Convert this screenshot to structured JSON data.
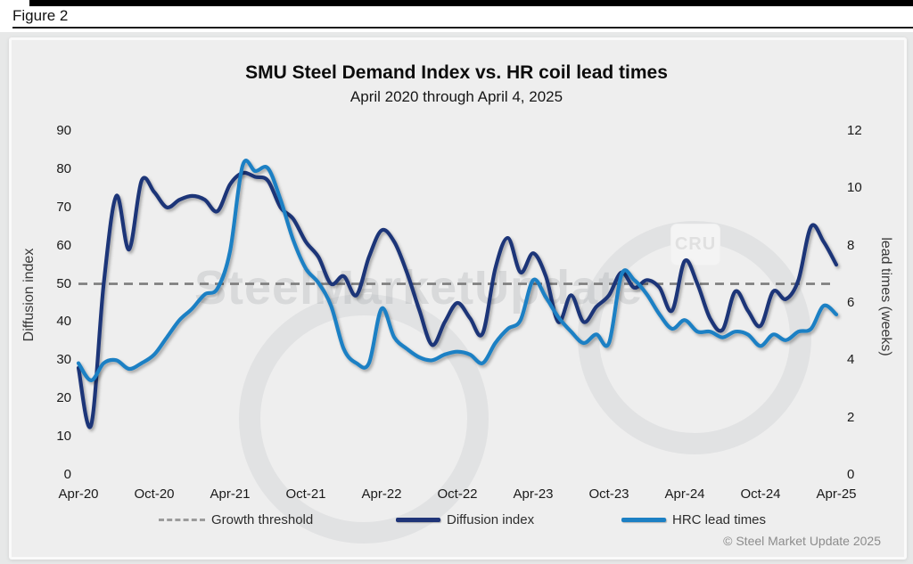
{
  "figure_label": "Figure 2",
  "chart": {
    "title": "SMU Steel Demand Index vs. HR coil lead times",
    "subtitle": "April 2020 through April 4, 2025",
    "watermark_text": "SteelMarketUpdate",
    "cru_logo_text": "CRU",
    "copyright": "© Steel Market Update 2025"
  },
  "colors": {
    "diffusion_line": "#1f3478",
    "hrc_line": "#1c80c4",
    "threshold_line": "#7c7c7c",
    "panel_bg": "#eeeeee",
    "page_bg": "#e7e8e8"
  },
  "chart_data": {
    "type": "line",
    "title": "SMU Steel Demand Index vs. HR coil lead times",
    "subtitle": "April 2020 through April 4, 2025",
    "frequency": "monthly",
    "x_start": "Apr-20",
    "x_end": "Apr-25",
    "x_tick_labels": [
      "Apr-20",
      "Oct-20",
      "Apr-21",
      "Oct-21",
      "Apr-22",
      "Oct-22",
      "Apr-23",
      "Oct-23",
      "Apr-24",
      "Oct-24",
      "Apr-25"
    ],
    "left_axis": {
      "label": "Diffusion index",
      "range": [
        0,
        90
      ],
      "ticks": [
        0,
        10,
        20,
        30,
        40,
        50,
        60,
        70,
        80,
        90
      ]
    },
    "right_axis": {
      "label": "lead times (weeks)",
      "range": [
        0,
        12
      ],
      "ticks": [
        0,
        2,
        4,
        6,
        8,
        10,
        12
      ]
    },
    "threshold": {
      "label": "Growth threshold",
      "value": 50,
      "axis": "left",
      "style": "dashed",
      "color": "#7c7c7c"
    },
    "grid": false,
    "legend_position": "bottom",
    "series": [
      {
        "name": "Diffusion index",
        "axis": "left",
        "color": "#1f3478",
        "values": [
          28,
          13,
          50,
          73,
          59,
          77,
          74,
          70,
          72,
          73,
          72,
          69,
          76,
          79,
          78,
          77,
          70,
          67,
          61,
          57,
          50,
          52,
          47,
          57,
          64,
          61,
          53,
          43,
          34,
          40,
          45,
          41,
          37,
          54,
          62,
          53,
          58,
          52,
          40,
          47,
          40,
          44,
          47,
          53,
          49,
          51,
          49,
          43,
          56,
          50,
          41,
          38,
          48,
          43,
          39,
          48,
          46,
          51,
          65,
          61,
          55
        ]
      },
      {
        "name": "HRC lead times",
        "axis": "right",
        "color": "#1c80c4",
        "values": [
          3.9,
          3.3,
          3.9,
          4.0,
          3.7,
          3.9,
          4.2,
          4.8,
          5.4,
          5.8,
          6.3,
          6.5,
          7.8,
          10.8,
          10.6,
          10.7,
          9.6,
          8.2,
          7.2,
          6.7,
          5.9,
          4.4,
          3.9,
          3.9,
          5.8,
          4.8,
          4.4,
          4.1,
          4.0,
          4.2,
          4.3,
          4.2,
          3.9,
          4.6,
          5.1,
          5.4,
          6.8,
          6.2,
          5.5,
          5.0,
          4.6,
          4.9,
          4.6,
          7.0,
          6.8,
          6.3,
          5.6,
          5.1,
          5.4,
          5.0,
          5.0,
          4.8,
          5.0,
          4.9,
          4.5,
          4.9,
          4.7,
          5.0,
          5.1,
          5.9,
          5.6
        ]
      }
    ]
  }
}
